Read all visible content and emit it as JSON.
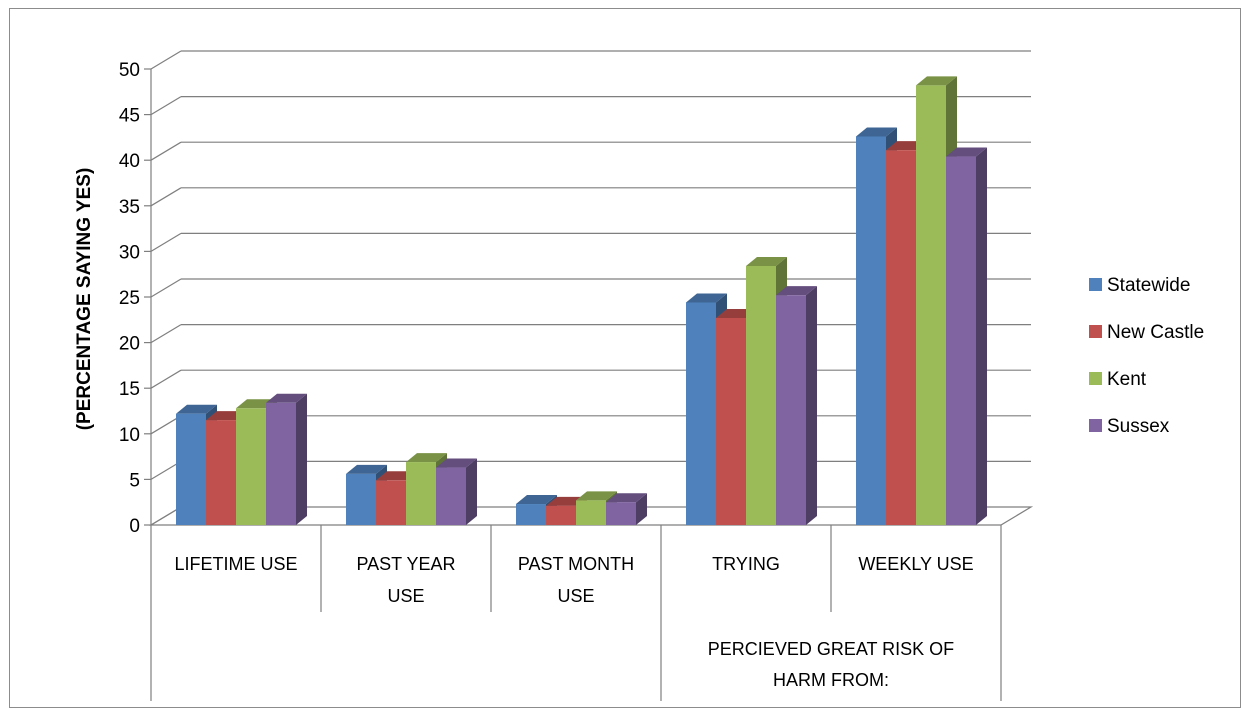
{
  "chart_data": {
    "type": "bar",
    "style": "3d-clustered-column",
    "ylabel": "(PERCENTAGE SAYING YES)",
    "ylim": [
      0,
      50
    ],
    "yticks": [
      0,
      5,
      10,
      15,
      20,
      25,
      30,
      35,
      40,
      45,
      50
    ],
    "grid": true,
    "legend_position": "right",
    "categories": [
      "LIFETIME USE",
      "PAST YEAR USE",
      "PAST MONTH USE",
      "TRYING",
      "WEEKLY USE"
    ],
    "group_labels": [
      {
        "label": "",
        "categories": [
          "LIFETIME USE",
          "PAST YEAR USE",
          "PAST MONTH USE"
        ]
      },
      {
        "label": "PERCIEVED GREAT RISK OF HARM FROM:",
        "categories": [
          "TRYING",
          "WEEKLY USE"
        ]
      }
    ],
    "series": [
      {
        "name": "Statewide",
        "color": "#4f81bd",
        "values": [
          12.2,
          5.6,
          2.3,
          24.4,
          42.6
        ]
      },
      {
        "name": "New Castle",
        "color": "#c0504d",
        "values": [
          11.5,
          4.9,
          2.1,
          22.7,
          41.1
        ]
      },
      {
        "name": "Kent",
        "color": "#9bbb59",
        "values": [
          12.8,
          6.9,
          2.7,
          28.4,
          48.2
        ]
      },
      {
        "name": "Sussex",
        "color": "#8064a2",
        "values": [
          13.4,
          6.3,
          2.5,
          25.2,
          40.4
        ]
      }
    ]
  }
}
